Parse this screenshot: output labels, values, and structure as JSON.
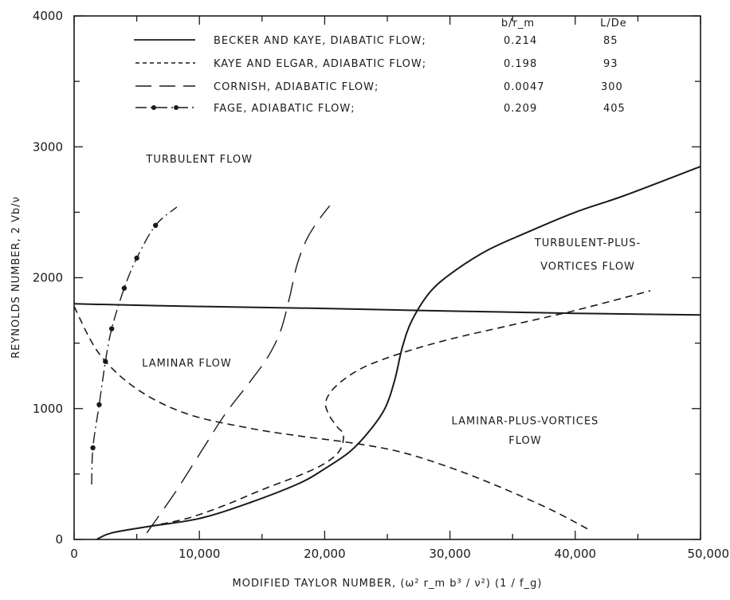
{
  "chart_data": {
    "type": "line",
    "xlabel": "MODIFIED TAYLOR NUMBER, (ω² r_m b³ / ν²) (1 / f_g)",
    "ylabel": "REYNOLDS NUMBER, 2 Vb/ν",
    "xlim": [
      0,
      50000
    ],
    "ylim": [
      0,
      4000
    ],
    "x_ticks": [
      "0",
      "10,000",
      "20,000",
      "30,000",
      "40,000",
      "50,000"
    ],
    "y_ticks": [
      "0",
      "1000",
      "2000",
      "3000",
      "4000"
    ],
    "x_tick_values": [
      0,
      10000,
      20000,
      30000,
      40000,
      50000
    ],
    "y_tick_values": [
      0,
      1000,
      2000,
      3000,
      4000
    ],
    "grid": false,
    "legend": {
      "placement": "top",
      "col_headers": [
        "b/r_m",
        "L/De"
      ],
      "entries": [
        {
          "label": "BECKER AND KAYE, DIABATIC FLOW;",
          "b_rm": "0.214",
          "L_De": "85"
        },
        {
          "label": "KAYE AND ELGAR, ADIABATIC FLOW;",
          "b_rm": "0.198",
          "L_De": "93"
        },
        {
          "label": "CORNISH, ADIABATIC FLOW;",
          "b_rm": "0.0047",
          "L_De": "300"
        },
        {
          "label": "FAGE, ADIABATIC FLOW;",
          "b_rm": "0.209",
          "L_De": "405"
        }
      ]
    },
    "annotations": [
      {
        "text": "TURBULENT FLOW",
        "x": 10000,
        "y": 2880
      },
      {
        "text": "LAMINAR FLOW",
        "x": 9000,
        "y": 1320
      },
      {
        "text": "TURBULENT-PLUS-",
        "x": 41000,
        "y": 2240
      },
      {
        "text": "VORTICES FLOW",
        "x": 41000,
        "y": 2060
      },
      {
        "text": "LAMINAR-PLUS-VORTICES",
        "x": 36000,
        "y": 880
      },
      {
        "text": "FLOW",
        "x": 36000,
        "y": 730
      }
    ],
    "series": [
      {
        "name": "BECKER AND KAYE, DIABATIC FLOW;",
        "style": "solid",
        "points": [
          [
            1800,
            0
          ],
          [
            3000,
            50
          ],
          [
            6000,
            100
          ],
          [
            10000,
            160
          ],
          [
            14000,
            280
          ],
          [
            18000,
            430
          ],
          [
            20000,
            540
          ],
          [
            22000,
            670
          ],
          [
            23500,
            820
          ],
          [
            24800,
            1000
          ],
          [
            25600,
            1220
          ],
          [
            26200,
            1470
          ],
          [
            27000,
            1680
          ],
          [
            28500,
            1900
          ],
          [
            30500,
            2060
          ],
          [
            33000,
            2210
          ],
          [
            36000,
            2340
          ],
          [
            40000,
            2500
          ],
          [
            44000,
            2630
          ],
          [
            50000,
            2850
          ]
        ]
      },
      {
        "name": "KAYE AND ELGAR, ADIABATIC FLOW;",
        "style": "dashed",
        "points": [
          [
            6000,
            100
          ],
          [
            9000,
            160
          ],
          [
            12000,
            260
          ],
          [
            15000,
            380
          ],
          [
            18000,
            490
          ],
          [
            20000,
            580
          ],
          [
            21200,
            680
          ],
          [
            21500,
            800
          ],
          [
            21000,
            860
          ],
          [
            20300,
            960
          ],
          [
            20100,
            1060
          ],
          [
            21000,
            1180
          ],
          [
            23000,
            1310
          ],
          [
            26000,
            1420
          ],
          [
            30000,
            1530
          ],
          [
            35000,
            1640
          ],
          [
            40000,
            1750
          ],
          [
            46000,
            1900
          ]
        ]
      },
      {
        "name": "KAYE AND ELGAR, ADIABATIC FLOW; (second curve)",
        "style": "dashed",
        "points": [
          [
            0,
            1780
          ],
          [
            2000,
            1420
          ],
          [
            5000,
            1150
          ],
          [
            9000,
            960
          ],
          [
            14000,
            850
          ],
          [
            18000,
            790
          ],
          [
            22000,
            740
          ],
          [
            26000,
            670
          ],
          [
            30000,
            550
          ],
          [
            34000,
            400
          ],
          [
            38000,
            230
          ],
          [
            41000,
            80
          ]
        ]
      },
      {
        "name": "CORNISH, ADIABATIC FLOW;",
        "style": "longdash",
        "points": [
          [
            5800,
            50
          ],
          [
            8000,
            350
          ],
          [
            10000,
            650
          ],
          [
            12000,
            950
          ],
          [
            14000,
            1200
          ],
          [
            15500,
            1400
          ],
          [
            16500,
            1600
          ],
          [
            17200,
            1850
          ],
          [
            17800,
            2100
          ],
          [
            18600,
            2300
          ],
          [
            19600,
            2450
          ],
          [
            20400,
            2550
          ]
        ]
      },
      {
        "name": "FAGE, ADIABATIC FLOW;",
        "style": "dashdot-marker",
        "points": [
          [
            1400,
            420
          ],
          [
            1500,
            700
          ],
          [
            2000,
            1030
          ],
          [
            2500,
            1360
          ],
          [
            3000,
            1610
          ],
          [
            4000,
            1920
          ],
          [
            5000,
            2150
          ],
          [
            6500,
            2400
          ],
          [
            8200,
            2540
          ]
        ],
        "markers": [
          [
            1500,
            700
          ],
          [
            2000,
            1030
          ],
          [
            2500,
            1360
          ],
          [
            3000,
            1610
          ],
          [
            4000,
            1920
          ],
          [
            5000,
            2150
          ],
          [
            6500,
            2400
          ]
        ]
      },
      {
        "name": "",
        "style": "solid",
        "points": [
          [
            0,
            1800
          ],
          [
            10000,
            1780
          ],
          [
            20000,
            1765
          ],
          [
            30000,
            1745
          ],
          [
            40000,
            1728
          ],
          [
            50000,
            1715
          ]
        ]
      }
    ]
  }
}
